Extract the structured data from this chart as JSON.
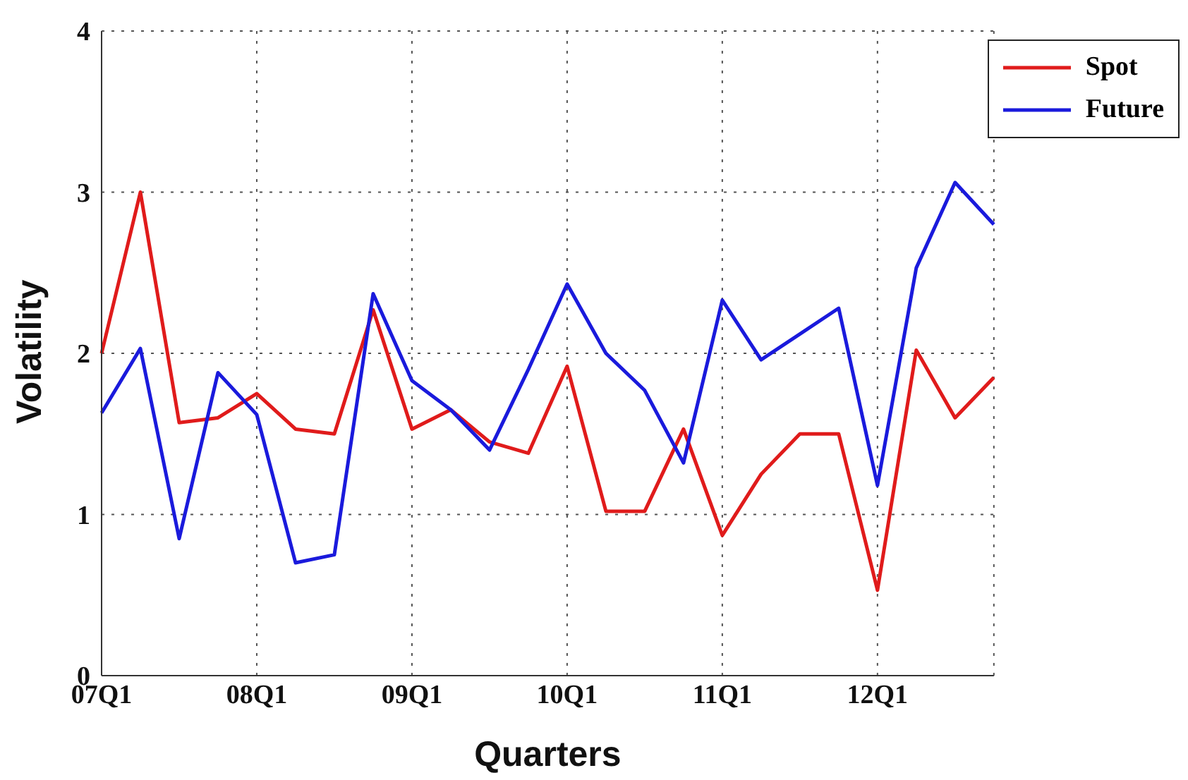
{
  "chart_data": {
    "type": "line",
    "xlabel": "Quarters",
    "ylabel": "Volatility",
    "categories": [
      "07Q1",
      null,
      null,
      null,
      "08Q1",
      null,
      null,
      null,
      "09Q1",
      null,
      null,
      null,
      "10Q1",
      null,
      null,
      null,
      "11Q1",
      null,
      null,
      null,
      "12Q1",
      null,
      null,
      null
    ],
    "series": [
      {
        "name": "Spot",
        "color": "#e01b1b",
        "values": [
          2.0,
          3.0,
          1.57,
          1.6,
          1.75,
          1.53,
          1.5,
          2.27,
          1.53,
          1.65,
          1.45,
          1.38,
          1.92,
          1.02,
          1.02,
          1.53,
          0.87,
          1.25,
          1.5,
          1.5,
          0.53,
          2.02,
          1.6,
          1.85
        ]
      },
      {
        "name": "Future",
        "color": "#1a1adc",
        "values": [
          1.63,
          2.03,
          0.85,
          1.88,
          1.62,
          0.7,
          0.75,
          2.37,
          1.83,
          1.65,
          1.4,
          1.9,
          2.43,
          2.0,
          1.77,
          1.32,
          2.33,
          1.96,
          2.12,
          2.28,
          1.18,
          2.53,
          3.06,
          2.8
        ]
      }
    ],
    "ylim": [
      0,
      4
    ],
    "yticks": [
      0,
      1,
      2,
      3,
      4
    ],
    "grid": true,
    "legend": "top right",
    "marker": "none",
    "line_style": "solid"
  }
}
